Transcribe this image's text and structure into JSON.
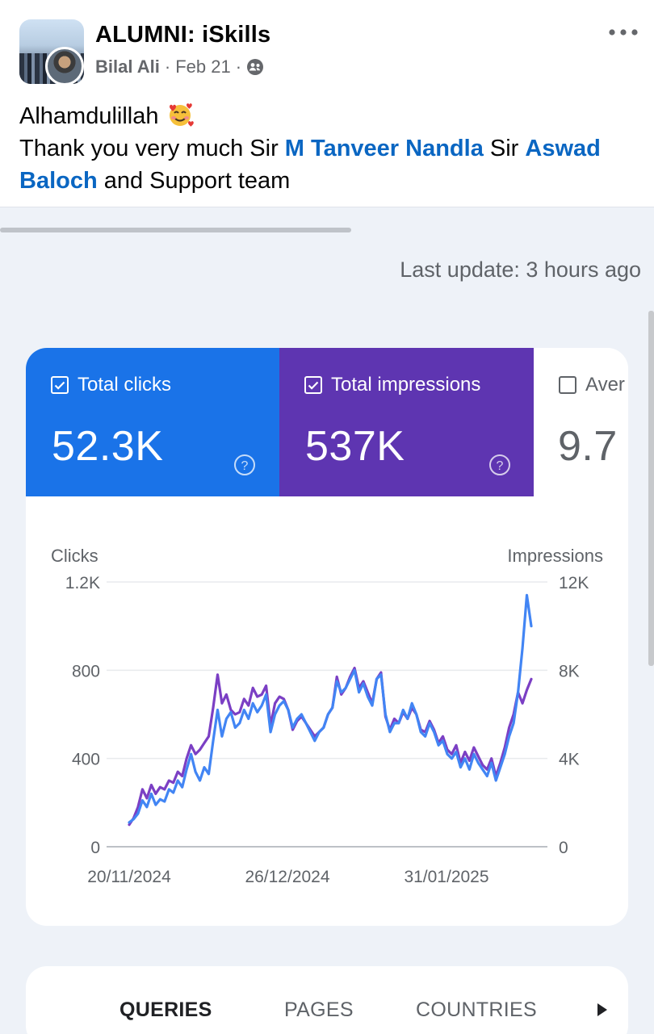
{
  "post": {
    "group_name": "ALUMNI: iSkills",
    "author": "Bilal Ali",
    "separator": "·",
    "date": "Feb 21",
    "line1": "Alhamdulillah",
    "line2_a": "Thank you very much Sir ",
    "mention1": "M Tanveer Nandla",
    "line2_b": " Sir ",
    "mention2": "Aswad Baloch",
    "line2_c": " and Support team"
  },
  "console": {
    "last_update": "Last update: 3 hours ago",
    "metrics": [
      {
        "label": "Total clicks",
        "value": "52.3K",
        "checked": true,
        "color": "#1a73e8"
      },
      {
        "label": "Total impressions",
        "value": "537K",
        "checked": true,
        "color": "#5e35b1"
      },
      {
        "label": "Aver",
        "value": "9.7",
        "checked": false,
        "color": "#ffffff"
      }
    ],
    "tabs": [
      "QUERIES",
      "PAGES",
      "COUNTRIES"
    ]
  },
  "chart_data": {
    "type": "line",
    "ylabel_left": "Clicks",
    "ylabel_right": "Impressions",
    "y_left_ticks": [
      "1.2K",
      "800",
      "400",
      "0"
    ],
    "y_right_ticks": [
      "12K",
      "8K",
      "4K",
      "0"
    ],
    "ylim_left": [
      0,
      1200
    ],
    "ylim_right": [
      0,
      12000
    ],
    "x_ticks": [
      "20/11/2024",
      "26/12/2024",
      "31/01/2025"
    ],
    "x_start": "2024-11-20",
    "x_end": "2025-02-17",
    "grid": true,
    "series": [
      {
        "name": "Clicks",
        "axis": "left",
        "color": "#4285f4",
        "values": [
          110,
          125,
          150,
          210,
          180,
          240,
          190,
          215,
          205,
          260,
          245,
          300,
          270,
          350,
          420,
          340,
          300,
          360,
          330,
          480,
          620,
          500,
          580,
          610,
          540,
          560,
          620,
          580,
          650,
          610,
          640,
          690,
          520,
          600,
          640,
          660,
          620,
          540,
          580,
          600,
          560,
          520,
          480,
          520,
          540,
          600,
          630,
          750,
          700,
          720,
          760,
          800,
          700,
          740,
          680,
          640,
          760,
          780,
          600,
          520,
          560,
          560,
          620,
          580,
          650,
          600,
          520,
          500,
          560,
          520,
          460,
          480,
          420,
          400,
          430,
          360,
          400,
          350,
          420,
          380,
          350,
          320,
          380,
          300,
          360,
          420,
          500,
          560,
          700,
          900,
          1140,
          1000
        ]
      },
      {
        "name": "Impressions",
        "axis": "right",
        "color": "#7b3fc4",
        "values": [
          1000,
          1300,
          1800,
          2600,
          2200,
          2800,
          2400,
          2700,
          2600,
          3000,
          2900,
          3400,
          3200,
          4000,
          4600,
          4200,
          4400,
          4700,
          5000,
          6300,
          7800,
          6500,
          6900,
          6200,
          6000,
          6100,
          6700,
          6400,
          7200,
          6800,
          6900,
          7300,
          5500,
          6500,
          6800,
          6700,
          6200,
          5300,
          5700,
          5900,
          5600,
          5300,
          5000,
          5200,
          5400,
          6000,
          6300,
          7700,
          6900,
          7200,
          7700,
          8100,
          7200,
          7500,
          7000,
          6500,
          7600,
          7900,
          5900,
          5300,
          5800,
          5600,
          6100,
          5800,
          6300,
          6000,
          5300,
          5200,
          5700,
          5300,
          4700,
          5000,
          4400,
          4200,
          4600,
          3800,
          4300,
          3900,
          4500,
          4100,
          3700,
          3500,
          4000,
          3200,
          3800,
          4500,
          5400,
          6000,
          7000,
          6500,
          7100,
          7600
        ]
      }
    ]
  }
}
